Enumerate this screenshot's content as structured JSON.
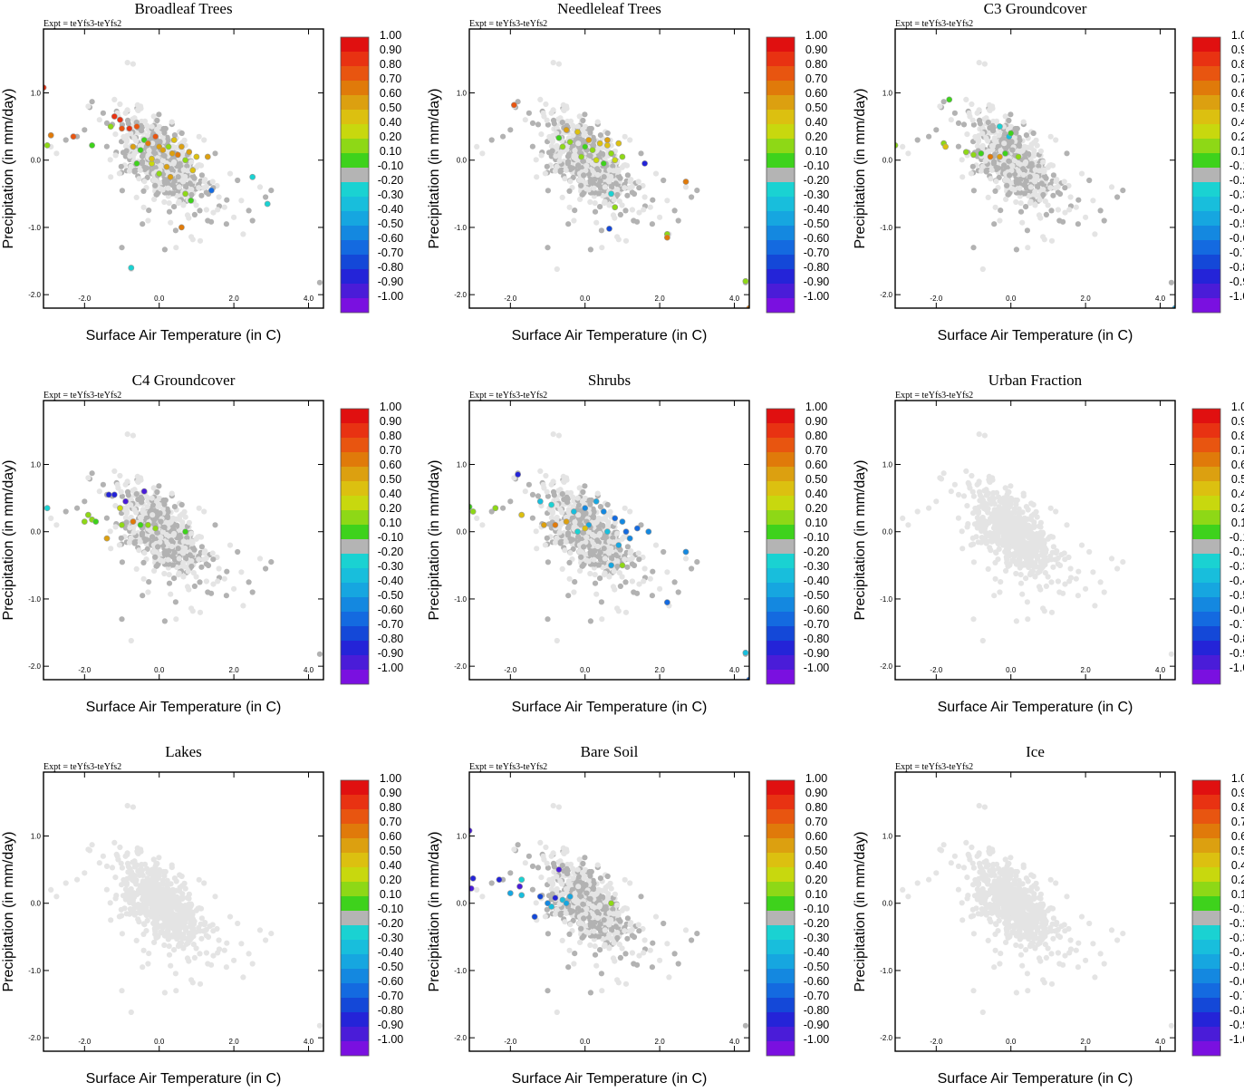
{
  "experiment_label": "Expt = teYfs3-teYfs2",
  "colorbar": {
    "labels": [
      "1.00",
      "0.90",
      "0.80",
      "0.70",
      "0.60",
      "0.50",
      "0.40",
      "0.20",
      "0.10",
      "-0.10",
      "-0.20",
      "-0.30",
      "-0.40",
      "-0.50",
      "-0.60",
      "-0.70",
      "-0.80",
      "-0.90",
      "-1.00"
    ],
    "colors": [
      "#e01010",
      "#e83212",
      "#e85510",
      "#e07a0a",
      "#dca010",
      "#dcc010",
      "#c8d80e",
      "#8ed816",
      "#3ed21c",
      "#b4b4b4",
      "#1ad2d2",
      "#18bedc",
      "#16a6e0",
      "#1488e0",
      "#146ae0",
      "#1448d8",
      "#2424d8",
      "#4a1cd8",
      "#7a10e0"
    ]
  },
  "chart_data": [
    {
      "type": "scatter",
      "title": "Broadleaf Trees",
      "xlabel": "Surface Air Temperature (in C)",
      "ylabel": "Precipitation (in mm/day)",
      "xlim": [
        -3.1,
        4.4
      ],
      "ylim": [
        -2.2,
        1.95
      ],
      "xticks": [
        "-2.0",
        "0.0",
        "2.0",
        "4.0"
      ],
      "yticks": [
        "1.0",
        "0.0",
        "-1.0",
        "-2.0"
      ],
      "highlight": [
        [
          -3.1,
          1.08,
          0.9
        ],
        [
          -2.9,
          0.37,
          0.7
        ],
        [
          -3.0,
          0.22,
          0.2
        ],
        [
          -2.3,
          0.35,
          0.8
        ],
        [
          -1.8,
          0.22,
          0.1
        ],
        [
          -1.2,
          0.65,
          0.9
        ],
        [
          -1.05,
          0.6,
          0.9
        ],
        [
          -1.3,
          0.5,
          0.3
        ],
        [
          -1.0,
          0.47,
          0.8
        ],
        [
          -0.8,
          0.47,
          0.9
        ],
        [
          -0.6,
          0.5,
          0.8
        ],
        [
          -0.7,
          0.2,
          0.6
        ],
        [
          -0.4,
          0.3,
          0.1
        ],
        [
          -0.3,
          0.25,
          0.7
        ],
        [
          -0.1,
          0.35,
          0.8
        ],
        [
          0.0,
          0.2,
          0.6
        ],
        [
          0.1,
          0.15,
          0.6
        ],
        [
          0.25,
          0.2,
          0.2
        ],
        [
          0.35,
          0.1,
          0.6
        ],
        [
          0.5,
          0.08,
          0.7
        ],
        [
          0.6,
          0.2,
          0.6
        ],
        [
          0.7,
          0.0,
          0.3
        ],
        [
          0.8,
          0.12,
          0.6
        ],
        [
          1.0,
          0.05,
          0.5
        ],
        [
          -0.2,
          -0.05,
          0.4
        ],
        [
          0.0,
          -0.2,
          0.2
        ],
        [
          0.3,
          -0.25,
          0.6
        ],
        [
          0.7,
          -0.5,
          0.2
        ],
        [
          0.6,
          -1.0,
          0.7
        ],
        [
          0.85,
          -0.6,
          0.1
        ],
        [
          -0.5,
          0.15,
          0.1
        ],
        [
          -0.2,
          0.02,
          0.5
        ],
        [
          0.4,
          0.3,
          0.5
        ],
        [
          1.3,
          0.05,
          0.6
        ],
        [
          1.4,
          -0.45,
          -0.6
        ],
        [
          2.5,
          -0.25,
          -0.2
        ],
        [
          2.9,
          -0.65,
          -0.2
        ],
        [
          -0.75,
          -1.6,
          -0.2
        ],
        [
          0.2,
          -0.1,
          0.6
        ],
        [
          0.9,
          -0.15,
          0.5
        ],
        [
          -0.6,
          -0.05,
          0.1
        ]
      ]
    },
    {
      "type": "scatter",
      "title": "Needleleaf Trees",
      "xlabel": "Surface Air Temperature (in C)",
      "ylabel": "Precipitation (in mm/day)",
      "xlim": [
        -3.1,
        4.4
      ],
      "ylim": [
        -2.2,
        1.95
      ],
      "xticks": [
        "-2.0",
        "0.0",
        "2.0",
        "4.0"
      ],
      "yticks": [
        "1.0",
        "0.0",
        "-1.0",
        "-2.0"
      ],
      "highlight": [
        [
          -1.9,
          0.82,
          0.8
        ],
        [
          -0.7,
          0.33,
          0.1
        ],
        [
          -0.5,
          0.45,
          0.6
        ],
        [
          -0.2,
          0.42,
          0.5
        ],
        [
          -0.4,
          0.27,
          0.3
        ],
        [
          0.0,
          0.2,
          0.1
        ],
        [
          0.2,
          0.15,
          0.2
        ],
        [
          0.4,
          0.25,
          0.5
        ],
        [
          0.6,
          0.3,
          0.6
        ],
        [
          0.7,
          0.1,
          0.2
        ],
        [
          0.9,
          0.25,
          0.5
        ],
        [
          1.0,
          0.05,
          0.3
        ],
        [
          0.5,
          -0.05,
          0.1
        ],
        [
          0.3,
          0.0,
          0.4
        ],
        [
          -0.1,
          0.05,
          0.2
        ],
        [
          1.6,
          -0.05,
          -0.8
        ],
        [
          0.7,
          -0.5,
          -0.2
        ],
        [
          0.8,
          -0.7,
          0.3
        ],
        [
          2.2,
          -1.1,
          0.2
        ],
        [
          2.2,
          -1.15,
          0.7
        ],
        [
          0.8,
          0.0,
          0.4
        ],
        [
          0.1,
          0.3,
          0.6
        ],
        [
          -0.6,
          0.2,
          0.2
        ],
        [
          2.7,
          -0.32,
          0.7
        ],
        [
          0.65,
          -1.02,
          -0.7
        ],
        [
          4.3,
          -1.8,
          0.3
        ],
        [
          4.4,
          -2.2,
          0.7
        ],
        [
          0.6,
          0.22,
          0.5
        ]
      ]
    },
    {
      "type": "scatter",
      "title": "C3 Groundcover",
      "xlabel": "Surface Air Temperature (in C)",
      "ylabel": "Precipitation (in mm/day)",
      "xlim": [
        -3.1,
        4.4
      ],
      "ylim": [
        -2.2,
        1.95
      ],
      "xticks": [
        "-2.0",
        "0.0",
        "2.0",
        "4.0"
      ],
      "yticks": [
        "1.0",
        "0.0",
        "-1.0",
        "-2.0"
      ],
      "highlight": [
        [
          -3.1,
          0.22,
          0.2
        ],
        [
          -1.8,
          0.25,
          0.2
        ],
        [
          -1.75,
          0.2,
          0.5
        ],
        [
          -1.2,
          0.12,
          0.3
        ],
        [
          -1.0,
          0.08,
          0.2
        ],
        [
          -0.8,
          0.1,
          0.1
        ],
        [
          -0.55,
          0.05,
          0.7
        ],
        [
          -0.3,
          0.05,
          0.6
        ],
        [
          -0.15,
          0.1,
          0.1
        ],
        [
          0.2,
          0.05,
          0.2
        ],
        [
          -0.3,
          0.5,
          -0.2
        ],
        [
          -0.05,
          0.35,
          -0.3
        ],
        [
          4.4,
          -2.2,
          -0.4
        ],
        [
          -1.65,
          0.9,
          0.1
        ],
        [
          0.0,
          0.4,
          0.1
        ]
      ]
    },
    {
      "type": "scatter",
      "title": "C4 Groundcover",
      "xlabel": "Surface Air Temperature (in C)",
      "ylabel": "Precipitation (in mm/day)",
      "xlim": [
        -3.1,
        4.4
      ],
      "ylim": [
        -2.2,
        1.95
      ],
      "xticks": [
        "-2.0",
        "0.0",
        "2.0",
        "4.0"
      ],
      "yticks": [
        "1.0",
        "0.0",
        "-1.0",
        "-2.0"
      ],
      "highlight": [
        [
          -3.0,
          0.35,
          -0.2
        ],
        [
          -1.9,
          0.25,
          0.2
        ],
        [
          -1.8,
          0.18,
          0.3
        ],
        [
          -2.0,
          0.15,
          0.2
        ],
        [
          -1.7,
          0.15,
          0.1
        ],
        [
          -1.35,
          0.55,
          -0.8
        ],
        [
          -1.2,
          0.55,
          -0.8
        ],
        [
          -1.05,
          0.35,
          0.4
        ],
        [
          -0.9,
          0.45,
          -0.9
        ],
        [
          -0.4,
          0.6,
          -0.9
        ],
        [
          -0.7,
          0.15,
          0.7
        ],
        [
          -1.4,
          -0.1,
          0.6
        ],
        [
          -0.5,
          0.1,
          0.1
        ],
        [
          -0.3,
          0.1,
          0.2
        ],
        [
          -0.1,
          0.05,
          0.2
        ],
        [
          0.7,
          0.0,
          0.1
        ],
        [
          -1.0,
          0.1,
          0.2
        ]
      ]
    },
    {
      "type": "scatter",
      "title": "Shrubs",
      "xlabel": "Surface Air Temperature (in C)",
      "ylabel": "Precipitation (in mm/day)",
      "xlim": [
        -3.1,
        4.4
      ],
      "ylim": [
        -2.2,
        1.95
      ],
      "xticks": [
        "-2.0",
        "0.0",
        "2.0",
        "4.0"
      ],
      "yticks": [
        "1.0",
        "0.0",
        "-1.0",
        "-2.0"
      ],
      "highlight": [
        [
          -3.1,
          0.37,
          0.1
        ],
        [
          -3.0,
          0.3,
          0.2
        ],
        [
          -2.4,
          0.35,
          0.2
        ],
        [
          -1.8,
          0.85,
          -0.8
        ],
        [
          -1.7,
          0.25,
          0.5
        ],
        [
          -1.1,
          0.1,
          0.6
        ],
        [
          -0.8,
          0.1,
          0.7
        ],
        [
          -0.5,
          0.15,
          0.6
        ],
        [
          -1.2,
          0.45,
          -0.3
        ],
        [
          -0.9,
          0.4,
          -0.2
        ],
        [
          -0.3,
          0.3,
          -0.3
        ],
        [
          0.0,
          0.35,
          -0.5
        ],
        [
          0.3,
          0.45,
          -0.4
        ],
        [
          0.5,
          0.3,
          -0.5
        ],
        [
          0.8,
          0.2,
          -0.6
        ],
        [
          1.0,
          0.15,
          -0.5
        ],
        [
          1.1,
          0.0,
          -0.6
        ],
        [
          1.2,
          -0.1,
          -0.5
        ],
        [
          1.4,
          0.05,
          -0.6
        ],
        [
          1.7,
          0.0,
          -0.5
        ],
        [
          2.7,
          -0.3,
          -0.5
        ],
        [
          0.7,
          -0.5,
          -0.4
        ],
        [
          1.0,
          -0.5,
          0.2
        ],
        [
          2.2,
          -1.05,
          -0.6
        ],
        [
          0.1,
          0.1,
          -0.4
        ],
        [
          -0.2,
          0.0,
          -0.2
        ],
        [
          0.6,
          0.0,
          -0.3
        ],
        [
          0.9,
          -0.2,
          -0.4
        ],
        [
          4.3,
          -1.8,
          -0.3
        ],
        [
          4.4,
          -2.2,
          -0.6
        ],
        [
          0.0,
          0.05,
          0.5
        ]
      ]
    },
    {
      "type": "scatter",
      "title": "Urban Fraction",
      "xlabel": "Surface Air Temperature (in C)",
      "ylabel": "Precipitation (in mm/day)",
      "xlim": [
        -3.1,
        4.4
      ],
      "ylim": [
        -2.2,
        1.95
      ],
      "xticks": [
        "-2.0",
        "0.0",
        "2.0",
        "4.0"
      ],
      "yticks": [
        "1.0",
        "0.0",
        "-1.0",
        "-2.0"
      ],
      "highlight": []
    },
    {
      "type": "scatter",
      "title": "Lakes",
      "xlabel": "Surface Air Temperature (in C)",
      "ylabel": "Precipitation (in mm/day)",
      "xlim": [
        -3.1,
        4.4
      ],
      "ylim": [
        -2.2,
        1.95
      ],
      "xticks": [
        "-2.0",
        "0.0",
        "2.0",
        "4.0"
      ],
      "yticks": [
        "1.0",
        "0.0",
        "-1.0",
        "-2.0"
      ],
      "highlight": []
    },
    {
      "type": "scatter",
      "title": "Bare Soil",
      "xlabel": "Surface Air Temperature (in C)",
      "ylabel": "Precipitation (in mm/day)",
      "xlim": [
        -3.1,
        4.4
      ],
      "ylim": [
        -2.2,
        1.95
      ],
      "xticks": [
        "-2.0",
        "0.0",
        "2.0",
        "4.0"
      ],
      "yticks": [
        "1.0",
        "0.0",
        "-1.0",
        "-2.0"
      ],
      "highlight": [
        [
          -3.1,
          1.08,
          -0.9
        ],
        [
          -3.0,
          0.37,
          -0.8
        ],
        [
          -3.05,
          0.22,
          -0.9
        ],
        [
          -2.3,
          0.35,
          -0.8
        ],
        [
          -1.7,
          0.35,
          -0.2
        ],
        [
          -1.75,
          0.25,
          -0.9
        ],
        [
          -2.0,
          0.15,
          -0.4
        ],
        [
          -1.7,
          0.12,
          -0.3
        ],
        [
          -1.2,
          0.1,
          -0.7
        ],
        [
          -0.8,
          0.08,
          -0.8
        ],
        [
          -0.6,
          0.05,
          -0.3
        ],
        [
          -0.4,
          0.1,
          -0.4
        ],
        [
          -0.7,
          0.5,
          -0.9
        ],
        [
          -1.35,
          -0.2,
          -0.7
        ],
        [
          -0.9,
          -0.05,
          -0.3
        ],
        [
          -0.5,
          0.0,
          -0.4
        ],
        [
          0.7,
          0.0,
          0.2
        ],
        [
          -1.0,
          0.0,
          -0.5
        ]
      ]
    },
    {
      "type": "scatter",
      "title": "Ice",
      "xlabel": "Surface Air Temperature (in C)",
      "ylabel": "Precipitation (in mm/day)",
      "xlim": [
        -3.1,
        4.4
      ],
      "ylim": [
        -2.2,
        1.95
      ],
      "xticks": [
        "-2.0",
        "0.0",
        "2.0",
        "4.0"
      ],
      "yticks": [
        "1.0",
        "0.0",
        "-1.0",
        "-2.0"
      ],
      "highlight": []
    }
  ]
}
